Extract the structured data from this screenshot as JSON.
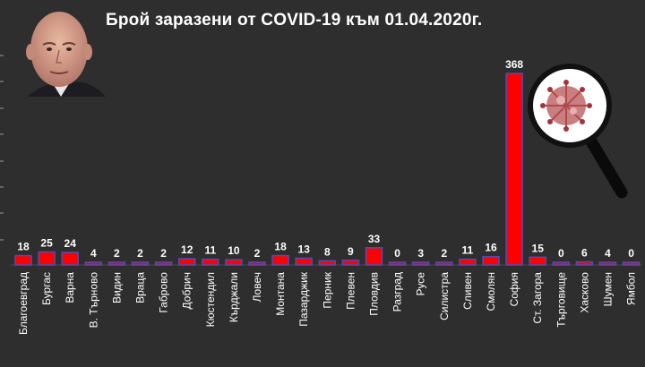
{
  "chart_data": {
    "type": "bar",
    "title": "Брой заразени от COVID-19 към 01.04.2020г.",
    "xlabel": "",
    "ylabel": "",
    "ylim": [
      0,
      400
    ],
    "grid": false,
    "legend": "none",
    "categories": [
      "Благоевград",
      "Бургас",
      "Варна",
      "В. Търново",
      "Видин",
      "Враца",
      "Габрово",
      "Добрич",
      "Кюстендил",
      "Кърджали",
      "Ловеч",
      "Монтана",
      "Пазарджик",
      "Перник",
      "Плевен",
      "Пловдив",
      "Разград",
      "Русе",
      "Силистра",
      "Сливен",
      "Смолян",
      "София",
      "Ст. Загора",
      "Търговище",
      "Хасково",
      "Шумен",
      "Ямбол"
    ],
    "series": [
      {
        "values": [
          18,
          25,
          24,
          4,
          2,
          2,
          2,
          12,
          11,
          10,
          2,
          18,
          13,
          8,
          9,
          33,
          0,
          3,
          2,
          11,
          16,
          368,
          15,
          0,
          6,
          4,
          0
        ],
        "color": "#ff0000"
      }
    ]
  },
  "colors": {
    "background": "#2e2e2e",
    "bar": "#ff0000",
    "bar_outline": "#4d4db8",
    "text": "#ffffff"
  },
  "decorations": {
    "portrait": "person-photo",
    "virus": "magnifier-virus-icon"
  }
}
